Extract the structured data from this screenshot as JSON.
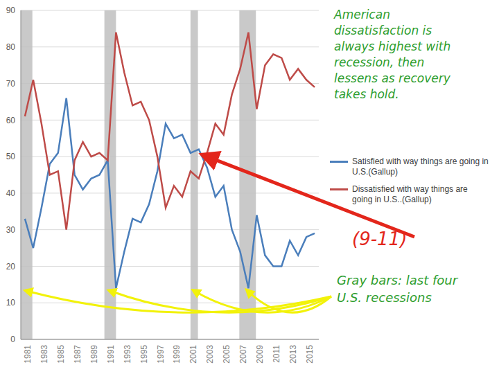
{
  "chart_data": {
    "type": "line",
    "x": [
      1981,
      1982,
      1983,
      1984,
      1985,
      1986,
      1987,
      1988,
      1989,
      1990,
      1991,
      1992,
      1993,
      1994,
      1995,
      1996,
      1997,
      1998,
      1999,
      2000,
      2001,
      2002,
      2003,
      2004,
      2005,
      2006,
      2007,
      2008,
      2009,
      2010,
      2011,
      2012,
      2013,
      2014,
      2015,
      2016
    ],
    "series": [
      {
        "name": "Satisfied with way things are going in U.S.(Gallup)",
        "color": "#4a7ebb",
        "values": [
          33,
          25,
          36,
          48,
          51,
          66,
          45,
          41,
          44,
          45,
          49,
          14,
          24,
          33,
          32,
          37,
          46,
          59,
          55,
          56,
          51,
          52,
          47,
          39,
          42,
          30,
          24,
          14,
          34,
          23,
          20,
          20,
          27,
          23,
          28,
          29
        ]
      },
      {
        "name": "Dissatisfied with way things are going in U.S..(Gallup)",
        "color": "#be4b48",
        "values": [
          61,
          71,
          59,
          45,
          46,
          30,
          49,
          54,
          50,
          51,
          49,
          84,
          73,
          64,
          65,
          60,
          50,
          36,
          42,
          39,
          46,
          44,
          51,
          59,
          56,
          67,
          74,
          84,
          63,
          75,
          78,
          77,
          71,
          74,
          71,
          69
        ]
      }
    ],
    "xlim": [
      1980.5,
      2016.5
    ],
    "xticks": [
      1981,
      1983,
      1985,
      1987,
      1989,
      1991,
      1993,
      1995,
      1997,
      1999,
      2001,
      2003,
      2005,
      2007,
      2009,
      2011,
      2013,
      2015
    ],
    "ylim": [
      0,
      90
    ],
    "yticks": [
      0,
      10,
      20,
      30,
      40,
      50,
      60,
      70,
      80,
      90
    ],
    "grid": true,
    "legend": "right",
    "recessions": [
      [
        1980.5,
        1981.9
      ],
      [
        1990.6,
        1992.0
      ],
      [
        2001.0,
        2001.9
      ],
      [
        2006.9,
        2008.9
      ]
    ],
    "annotations": [
      {
        "text": [
          "American",
          "dissatisfaction is",
          "always highest with",
          "recession, then",
          "lessens as recovery",
          "takes hold."
        ],
        "color": "#2e9e2e"
      },
      {
        "text": [
          "(9-11)"
        ],
        "color": "#e3261b"
      },
      {
        "text": [
          "Gray bars: last four",
          "U.S. recessions"
        ],
        "color": "#2e9e2e"
      }
    ]
  }
}
